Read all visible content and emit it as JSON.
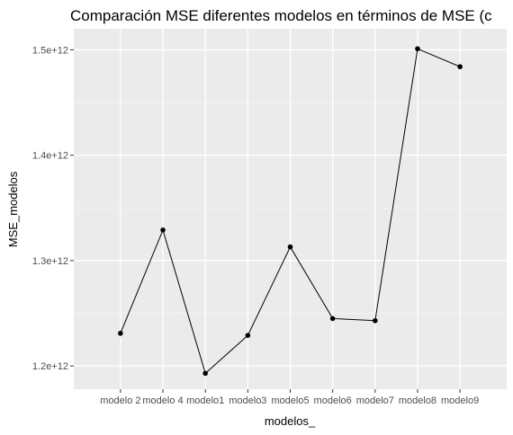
{
  "chart_data": {
    "type": "line",
    "title": "Comparación MSE diferentes modelos en términos de MSE (c",
    "xlabel": "modelos_",
    "ylabel": "MSE_modelos",
    "categories": [
      "modelo 2",
      "modelo 4",
      "modelo1",
      "modelo3",
      "modelo5",
      "modelo6",
      "modelo7",
      "modelo8",
      "modelo9"
    ],
    "values": [
      1231000000000.0,
      1329000000000.0,
      1193000000000.0,
      1229000000000.0,
      1313000000000.0,
      1245000000000.0,
      1243000000000.0,
      1501000000000.0,
      1484000000000.0
    ],
    "y_ticks": [
      1200000000000.0,
      1300000000000.0,
      1400000000000.0,
      1500000000000.0
    ],
    "y_tick_labels": [
      "1.2e+12",
      "1.3e+12",
      "1.4e+12",
      "1.5e+12"
    ],
    "ylim": [
      1178000000000.0,
      1520000000000.0
    ],
    "grid": true,
    "legend": "none",
    "colors": {
      "panel": "#ebebeb",
      "grid_major": "#ffffff",
      "grid_minor": "#f5f5f5",
      "line": "#000000",
      "point": "#000000",
      "tick_text": "#4d4d4d"
    }
  }
}
